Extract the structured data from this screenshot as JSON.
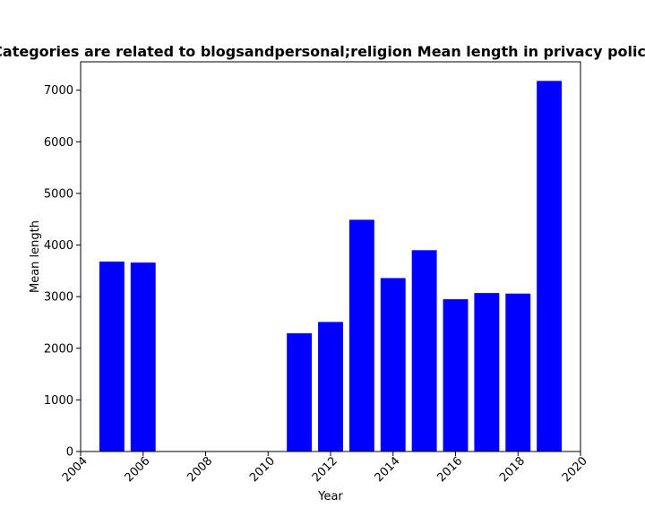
{
  "chart_data": {
    "type": "bar",
    "title": "Categories are related to blogsandpersonal;religion Mean length in privacy policies",
    "xlabel": "Year",
    "ylabel": "Mean length",
    "x": [
      2005,
      2006,
      2011,
      2012,
      2013,
      2014,
      2015,
      2016,
      2017,
      2018,
      2019
    ],
    "values": [
      3680,
      3660,
      2290,
      2510,
      4490,
      3360,
      3900,
      2950,
      3070,
      3060,
      7180
    ],
    "xlim": [
      2004,
      2020
    ],
    "ylim": [
      0,
      7550
    ],
    "xticks": [
      2004,
      2006,
      2008,
      2010,
      2012,
      2014,
      2016,
      2018,
      2020
    ],
    "yticks": [
      0,
      1000,
      2000,
      3000,
      4000,
      5000,
      6000,
      7000
    ],
    "bar_color": "#0000ff",
    "grid": false
  }
}
